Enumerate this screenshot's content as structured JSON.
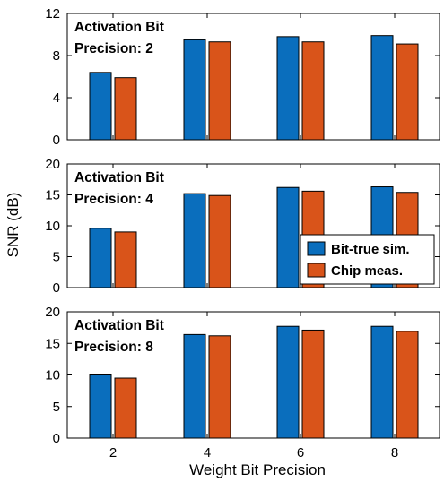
{
  "figure": {
    "ylabel": "SNR (dB)",
    "xlabel": "Weight Bit Precision"
  },
  "legend": {
    "placement": "inside-lower-right of middle panel",
    "entries": [
      {
        "label": "Bit-true sim.",
        "color": "#0A6EBD"
      },
      {
        "label": "Chip meas.",
        "color": "#D9541A"
      }
    ]
  },
  "chart_data": [
    {
      "type": "bar",
      "annotation": [
        "Activation Bit",
        "Precision: 2"
      ],
      "categories": [
        "2",
        "4",
        "6",
        "8"
      ],
      "series": [
        {
          "name": "Bit-true sim.",
          "color": "#0A6EBD",
          "values": [
            6.4,
            9.5,
            9.8,
            9.9
          ]
        },
        {
          "name": "Chip meas.",
          "color": "#D9541A",
          "values": [
            5.9,
            9.3,
            9.3,
            9.1
          ]
        }
      ],
      "ylim": [
        0,
        12
      ],
      "yticks": [
        0,
        4,
        8,
        12
      ],
      "xlabel": "",
      "ylabel": ""
    },
    {
      "type": "bar",
      "annotation": [
        "Activation Bit",
        "Precision: 4"
      ],
      "categories": [
        "2",
        "4",
        "6",
        "8"
      ],
      "series": [
        {
          "name": "Bit-true sim.",
          "color": "#0A6EBD",
          "values": [
            9.6,
            15.2,
            16.2,
            16.3
          ]
        },
        {
          "name": "Chip meas.",
          "color": "#D9541A",
          "values": [
            9.0,
            14.9,
            15.6,
            15.4
          ]
        }
      ],
      "ylim": [
        0,
        20
      ],
      "yticks": [
        0,
        5,
        10,
        15,
        20
      ],
      "xlabel": "",
      "ylabel": ""
    },
    {
      "type": "bar",
      "annotation": [
        "Activation Bit",
        "Precision: 8"
      ],
      "categories": [
        "2",
        "4",
        "6",
        "8"
      ],
      "series": [
        {
          "name": "Bit-true sim.",
          "color": "#0A6EBD",
          "values": [
            10.0,
            16.4,
            17.7,
            17.7
          ]
        },
        {
          "name": "Chip meas.",
          "color": "#D9541A",
          "values": [
            9.5,
            16.2,
            17.1,
            16.9
          ]
        }
      ],
      "ylim": [
        0,
        20
      ],
      "yticks": [
        0,
        5,
        10,
        15,
        20
      ],
      "xlabel": "",
      "ylabel": ""
    }
  ]
}
